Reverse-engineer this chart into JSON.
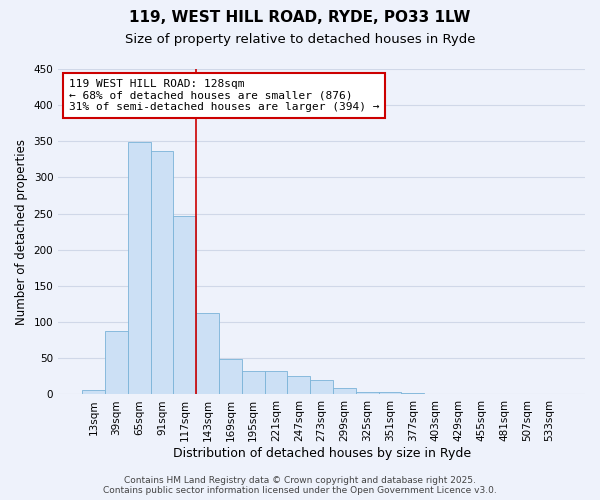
{
  "title": "119, WEST HILL ROAD, RYDE, PO33 1LW",
  "subtitle": "Size of property relative to detached houses in Ryde",
  "xlabel": "Distribution of detached houses by size in Ryde",
  "ylabel": "Number of detached properties",
  "categories": [
    "13sqm",
    "39sqm",
    "65sqm",
    "91sqm",
    "117sqm",
    "143sqm",
    "169sqm",
    "195sqm",
    "221sqm",
    "247sqm",
    "273sqm",
    "299sqm",
    "325sqm",
    "351sqm",
    "377sqm",
    "403sqm",
    "429sqm",
    "455sqm",
    "481sqm",
    "507sqm",
    "533sqm"
  ],
  "values": [
    6,
    88,
    349,
    336,
    247,
    112,
    49,
    32,
    32,
    25,
    20,
    9,
    3,
    3,
    2,
    1,
    0,
    1,
    0,
    1,
    1
  ],
  "bar_color": "#cce0f5",
  "bar_edge_color": "#7ab3d8",
  "background_color": "#eef2fb",
  "grid_color": "#d0d8e8",
  "vline_x": 4.5,
  "vline_color": "#cc0000",
  "annotation_text": "119 WEST HILL ROAD: 128sqm\n← 68% of detached houses are smaller (876)\n31% of semi-detached houses are larger (394) →",
  "annotation_box_edgecolor": "#cc0000",
  "annotation_box_facecolor": "#ffffff",
  "ylim": [
    0,
    450
  ],
  "yticks": [
    0,
    50,
    100,
    150,
    200,
    250,
    300,
    350,
    400,
    450
  ],
  "footer_line1": "Contains HM Land Registry data © Crown copyright and database right 2025.",
  "footer_line2": "Contains public sector information licensed under the Open Government Licence v3.0.",
  "title_fontsize": 11,
  "subtitle_fontsize": 9.5,
  "xlabel_fontsize": 9,
  "ylabel_fontsize": 8.5,
  "tick_fontsize": 7.5,
  "annotation_fontsize": 8,
  "footer_fontsize": 6.5
}
